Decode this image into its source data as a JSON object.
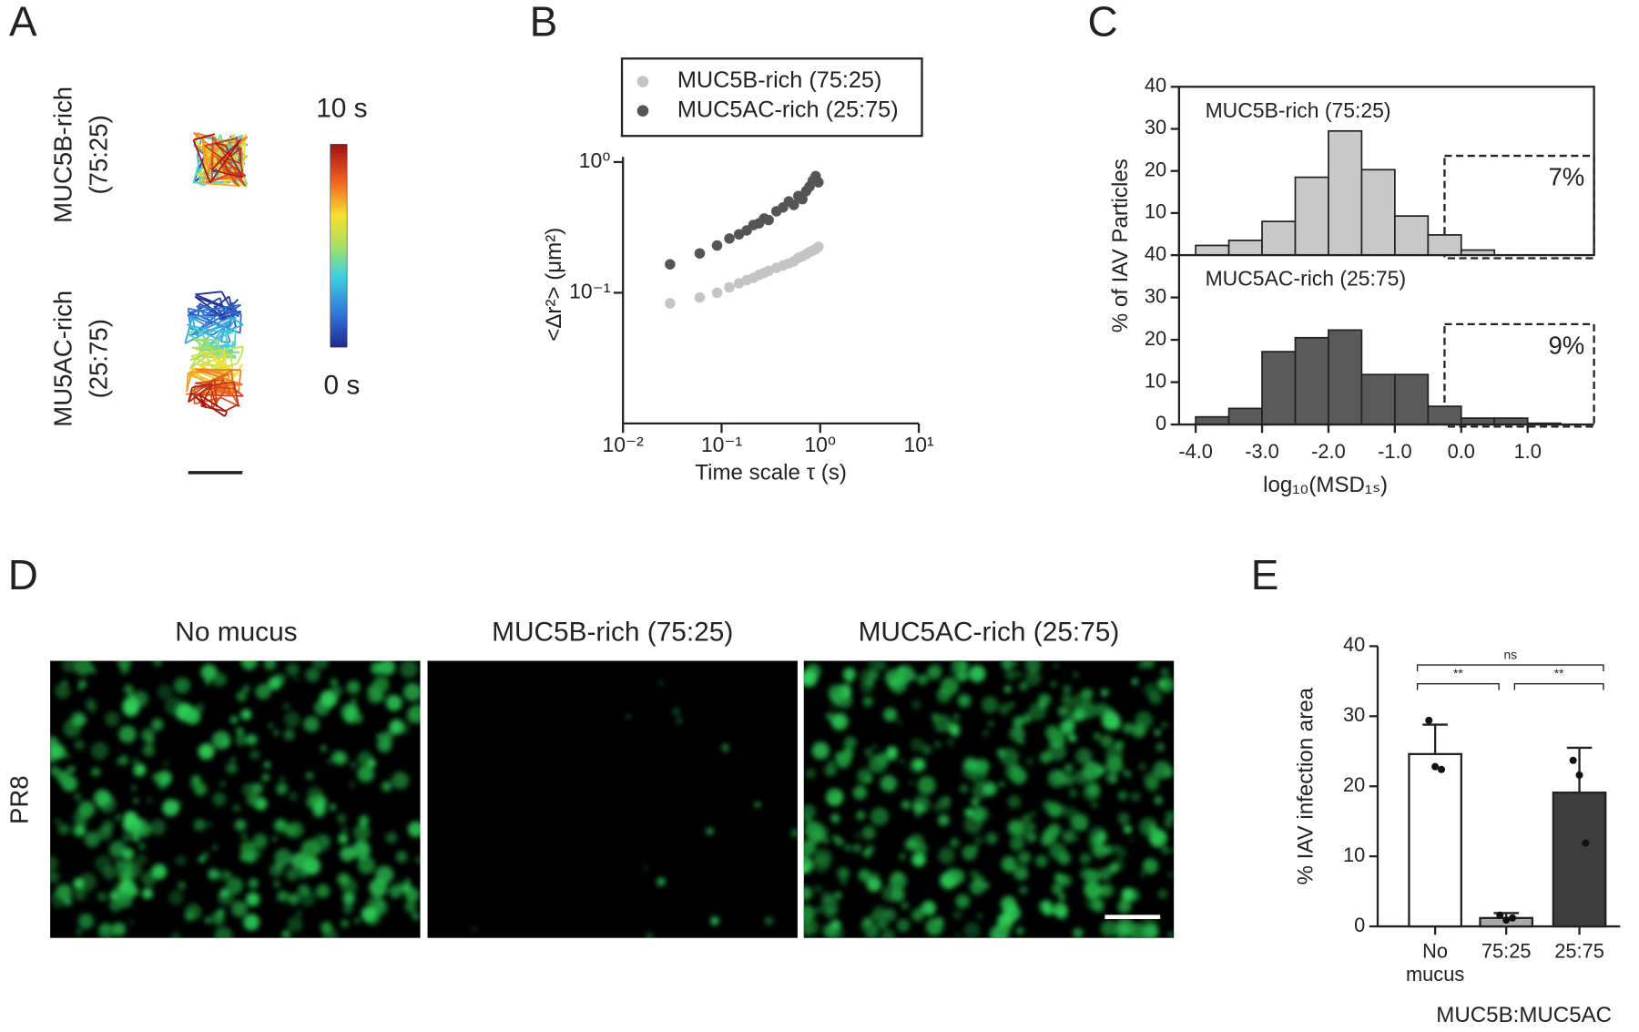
{
  "panel_labels": [
    "A",
    "B",
    "C",
    "D",
    "E"
  ],
  "panel_a": {
    "rows": [
      [
        "MUC5B-rich",
        "(75:25)"
      ],
      [
        "MU5AC-rich",
        "(25:75)"
      ]
    ],
    "colorbar_max": "10 s",
    "colorbar_min": "0 s"
  },
  "panel_d": {
    "columns": [
      "No mucus",
      "MUC5B-rich (75:25)",
      "MUC5AC-rich (25:75)"
    ],
    "row_label": "PR8"
  },
  "chart_data": [
    {
      "type": "scatter",
      "log_x": true,
      "log_y": true,
      "x_label": "Time scale τ (s)",
      "y_label": "<Δr²> (μm²)",
      "xlim": [
        0.01,
        10
      ],
      "ylim": [
        0.01,
        1
      ],
      "xticks": [
        {
          "value": 0.01,
          "label": "10⁻²"
        },
        {
          "value": 0.1,
          "label": "10⁻¹"
        },
        {
          "value": 1,
          "label": "10⁰"
        },
        {
          "value": 10,
          "label": "10¹"
        }
      ],
      "yticks": [
        {
          "value": 0.1,
          "label": "10⁻¹"
        },
        {
          "value": 1,
          "label": "10⁰"
        }
      ],
      "x": [
        0.03,
        0.06,
        0.09,
        0.12,
        0.15,
        0.18,
        0.21,
        0.24,
        0.27,
        0.3,
        0.36,
        0.42,
        0.48,
        0.54,
        0.6,
        0.66,
        0.72,
        0.78,
        0.84,
        0.9,
        0.96
      ],
      "series": [
        {
          "name": "MUC5B-rich (75:25)",
          "color": "#c4c4c4",
          "values": [
            0.083,
            0.092,
            0.1,
            0.11,
            0.118,
            0.125,
            0.13,
            0.137,
            0.142,
            0.147,
            0.155,
            0.162,
            0.168,
            0.174,
            0.185,
            0.19,
            0.197,
            0.205,
            0.21,
            0.216,
            0.225
          ]
        },
        {
          "name": "MUC5AC-rich (25:75)",
          "color": "#555555",
          "values": [
            0.165,
            0.2,
            0.23,
            0.26,
            0.28,
            0.3,
            0.33,
            0.34,
            0.37,
            0.36,
            0.42,
            0.45,
            0.5,
            0.47,
            0.55,
            0.52,
            0.6,
            0.65,
            0.72,
            0.78,
            0.7
          ]
        }
      ]
    },
    {
      "type": "histogram",
      "annotation": "MUC5B-rich (75:25)",
      "percent_label": "7%",
      "color": "#c8c8c8",
      "y_label": "% of IAV Particles",
      "bins": [
        -4.0,
        -3.5,
        -3.0,
        -2.5,
        -2.0,
        -1.5,
        -1.0,
        -0.5,
        0.0,
        0.5,
        1.0,
        1.5
      ],
      "values": [
        2.3,
        3.5,
        8,
        18.5,
        29.5,
        20.3,
        9.3,
        4.8,
        1.2,
        0,
        0
      ],
      "xlim": [
        -4.25,
        2.0
      ],
      "ylim": [
        0,
        40
      ],
      "yticks": [
        10,
        20,
        30,
        40
      ]
    },
    {
      "type": "histogram",
      "annotation": "MUC5AC-rich (25:75)",
      "percent_label": "9%",
      "color": "#5a5a5a",
      "x_label": "log₁₀(MSD₁ₛ)",
      "bins": [
        -4.0,
        -3.5,
        -3.0,
        -2.5,
        -2.0,
        -1.5,
        -1.0,
        -0.5,
        0.0,
        0.5,
        1.0,
        1.5
      ],
      "values": [
        1.8,
        3.8,
        17.2,
        20.5,
        22.3,
        11.8,
        11.8,
        4.3,
        1.5,
        1.5,
        0.3
      ],
      "xlim": [
        -4.25,
        2.0
      ],
      "ylim": [
        0,
        40
      ],
      "yticks": [
        0,
        10,
        20,
        30,
        40
      ],
      "xticks": [
        {
          "value": -4,
          "label": "-4.0"
        },
        {
          "value": -3,
          "label": "-3.0"
        },
        {
          "value": -2,
          "label": "-2.0"
        },
        {
          "value": -1,
          "label": "-1.0"
        },
        {
          "value": 0,
          "label": "0.0"
        },
        {
          "value": 1,
          "label": "1.0"
        }
      ]
    },
    {
      "type": "bar",
      "y_label": "% IAV infection area",
      "x_label": "MUC5B:MUC5AC",
      "categories": [
        "No mucus",
        "75:25",
        "25:75"
      ],
      "colors": [
        "#ffffff",
        "#a9a9a9",
        "#3d3d3d"
      ],
      "values": [
        24.6,
        1.2,
        19.1
      ],
      "errors": [
        4.2,
        0.7,
        6.4
      ],
      "points": [
        [
          29.4,
          22.8,
          22.4
        ],
        [
          1.6,
          0.9,
          1.2
        ],
        [
          23.7,
          21.6,
          11.9
        ]
      ],
      "significance": [
        "**",
        "**",
        "ns"
      ],
      "ylim": [
        0,
        40
      ],
      "yticks": [
        0,
        10,
        20,
        30,
        40
      ]
    }
  ]
}
